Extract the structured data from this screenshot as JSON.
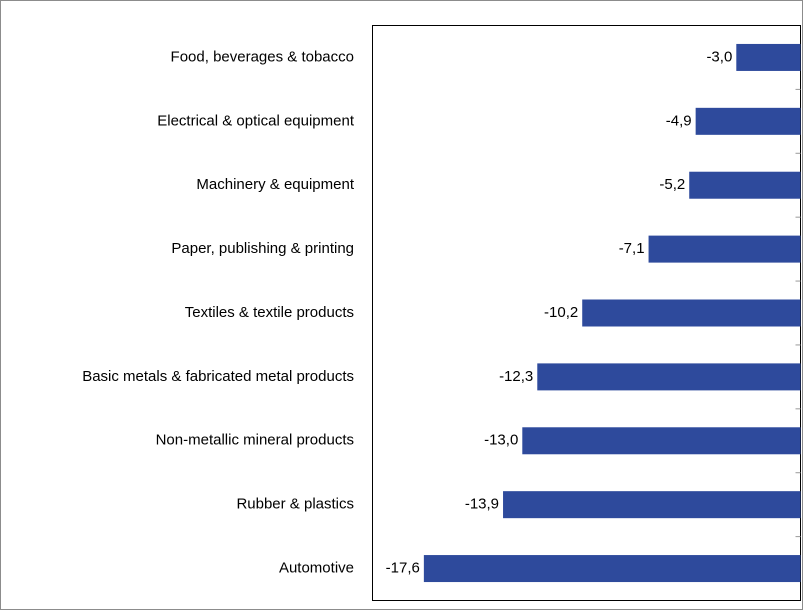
{
  "chart_data": {
    "type": "bar",
    "orientation": "horizontal",
    "categories": [
      "Food, beverages & tobacco",
      "Electrical & optical equipment",
      "Machinery & equipment",
      "Paper, publishing & printing",
      "Textiles & textile products",
      "Basic metals & fabricated metal products",
      "Non-metallic mineral products",
      "Rubber & plastics",
      "Automotive"
    ],
    "values": [
      -3.0,
      -4.9,
      -5.2,
      -7.1,
      -10.2,
      -12.3,
      -13.0,
      -13.9,
      -17.6
    ],
    "value_labels": [
      "-3,0",
      "-4,9",
      "-5,2",
      "-7,1",
      "-10,2",
      "-12,3",
      "-13,0",
      "-13,9",
      "-17,6"
    ],
    "color": "#2e4a9c",
    "xlim": [
      -20,
      0
    ]
  }
}
